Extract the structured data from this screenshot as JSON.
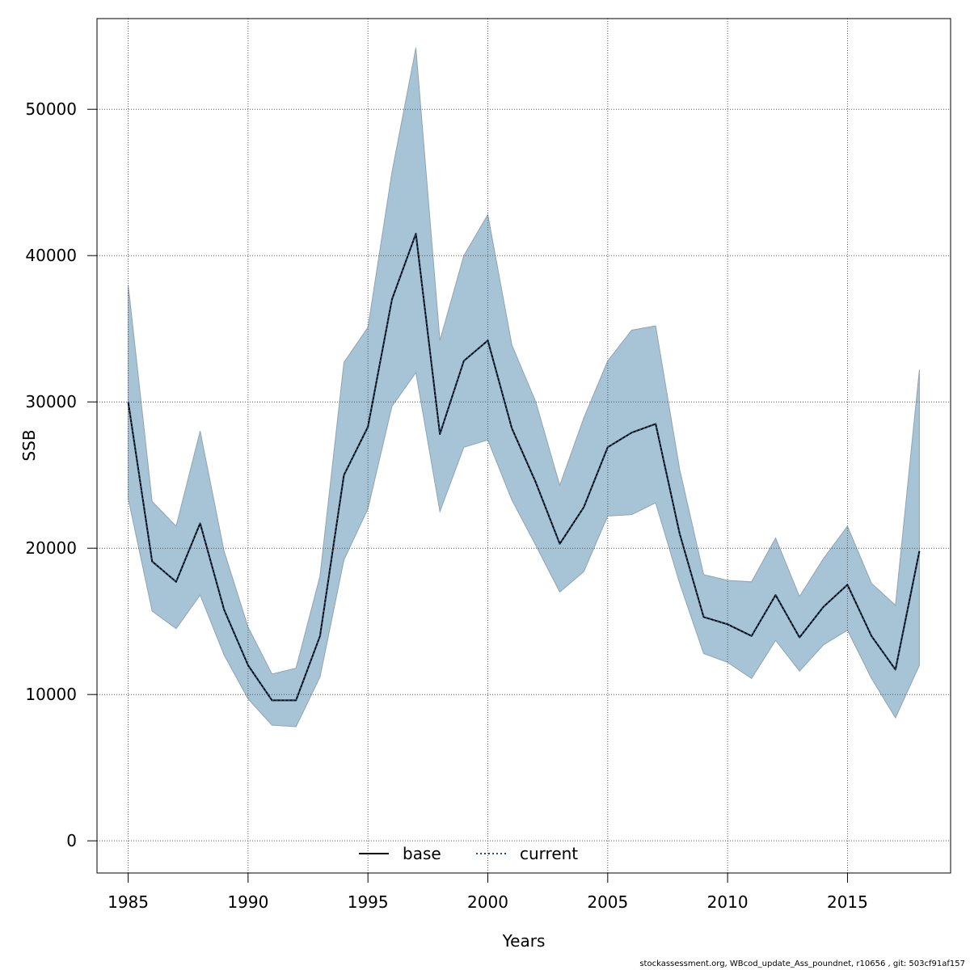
{
  "chart_data": {
    "type": "line",
    "xlabel": "Years",
    "ylabel": "SSB",
    "xlim": [
      1983.7,
      2019.3
    ],
    "ylim": [
      -2200,
      56200
    ],
    "x_ticks": [
      1985,
      1990,
      1995,
      2000,
      2005,
      2010,
      2015
    ],
    "y_ticks": [
      0,
      10000,
      20000,
      30000,
      40000,
      50000
    ],
    "grid": true,
    "legend_position": "bottom",
    "x": [
      1985,
      1986,
      1987,
      1988,
      1989,
      1990,
      1991,
      1992,
      1993,
      1994,
      1995,
      1996,
      1997,
      1998,
      1999,
      2000,
      2001,
      2002,
      2003,
      2004,
      2005,
      2006,
      2007,
      2008,
      2009,
      2010,
      2011,
      2012,
      2013,
      2014,
      2015,
      2016,
      2017,
      2018
    ],
    "series": [
      {
        "name": "base",
        "style": "solid",
        "color": "#000000",
        "values": [
          30000,
          19100,
          17700,
          21700,
          15800,
          12000,
          9600,
          9600,
          14000,
          25000,
          28300,
          37000,
          41500,
          27800,
          32800,
          34200,
          28200,
          24500,
          20300,
          22800,
          26900,
          27900,
          28500,
          21000,
          15300,
          14800,
          14000,
          16800,
          13900,
          16000,
          17500,
          14000,
          11700,
          19800
        ]
      },
      {
        "name": "current",
        "style": "dotted",
        "color": "#1f4e79",
        "values": [
          30000,
          19100,
          17700,
          21700,
          15800,
          12000,
          9600,
          9600,
          14000,
          25000,
          28300,
          37000,
          41500,
          27800,
          32800,
          34200,
          28200,
          24500,
          20300,
          22800,
          26900,
          27900,
          28500,
          21000,
          15300,
          14800,
          14000,
          16800,
          13900,
          16000,
          17500,
          14000,
          11700,
          19800
        ]
      }
    ],
    "band": {
      "color": "#a6c4d6",
      "upper": [
        38000,
        23200,
        21500,
        28000,
        19800,
        14600,
        11400,
        11800,
        18100,
        32700,
        35100,
        45700,
        54200,
        34200,
        40000,
        42800,
        33900,
        30000,
        24300,
        28900,
        32800,
        34900,
        35200,
        25400,
        18200,
        17800,
        17700,
        20700,
        16700,
        19300,
        21500,
        17600,
        16100,
        32200
      ],
      "lower": [
        23400,
        15700,
        14500,
        16800,
        12700,
        9700,
        7900,
        7800,
        11200,
        19200,
        22700,
        29700,
        32000,
        22500,
        26900,
        27400,
        23300,
        20200,
        17000,
        18400,
        22200,
        22300,
        23100,
        17600,
        12800,
        12200,
        11100,
        13700,
        11600,
        13400,
        14400,
        11100,
        8400,
        12000
      ]
    }
  },
  "footnote": "stockassessment.org, WBcod_update_Ass_poundnet, r10656 , git: 503cf91af157"
}
